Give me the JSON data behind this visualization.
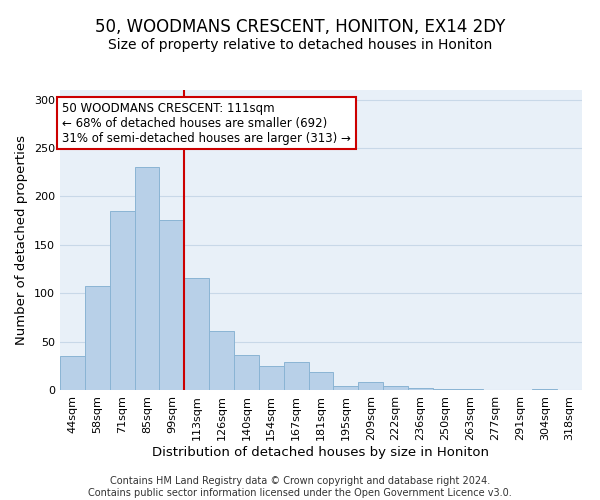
{
  "title": "50, WOODMANS CRESCENT, HONITON, EX14 2DY",
  "subtitle": "Size of property relative to detached houses in Honiton",
  "xlabel": "Distribution of detached houses by size in Honiton",
  "ylabel": "Number of detached properties",
  "bar_labels": [
    "44sqm",
    "58sqm",
    "71sqm",
    "85sqm",
    "99sqm",
    "113sqm",
    "126sqm",
    "140sqm",
    "154sqm",
    "167sqm",
    "181sqm",
    "195sqm",
    "209sqm",
    "222sqm",
    "236sqm",
    "250sqm",
    "263sqm",
    "277sqm",
    "291sqm",
    "304sqm",
    "318sqm"
  ],
  "bar_values": [
    35,
    107,
    185,
    230,
    176,
    116,
    61,
    36,
    25,
    29,
    19,
    4,
    8,
    4,
    2,
    1,
    1,
    0,
    0,
    1,
    0
  ],
  "bar_color": "#b8d0e8",
  "bar_edge_color": "#8ab4d4",
  "reference_line_color": "#cc0000",
  "reference_line_index": 5,
  "annotation_text": "50 WOODMANS CRESCENT: 111sqm\n← 68% of detached houses are smaller (692)\n31% of semi-detached houses are larger (313) →",
  "annotation_box_facecolor": "#ffffff",
  "annotation_box_edgecolor": "#cc0000",
  "ylim": [
    0,
    310
  ],
  "yticks": [
    0,
    50,
    100,
    150,
    200,
    250,
    300
  ],
  "bg_color": "#e8f0f8",
  "grid_color": "#c8d8e8",
  "footer_line1": "Contains HM Land Registry data © Crown copyright and database right 2024.",
  "footer_line2": "Contains public sector information licensed under the Open Government Licence v3.0.",
  "title_fontsize": 12,
  "subtitle_fontsize": 10,
  "axis_label_fontsize": 9.5,
  "tick_fontsize": 8,
  "annotation_fontsize": 8.5,
  "footer_fontsize": 7
}
